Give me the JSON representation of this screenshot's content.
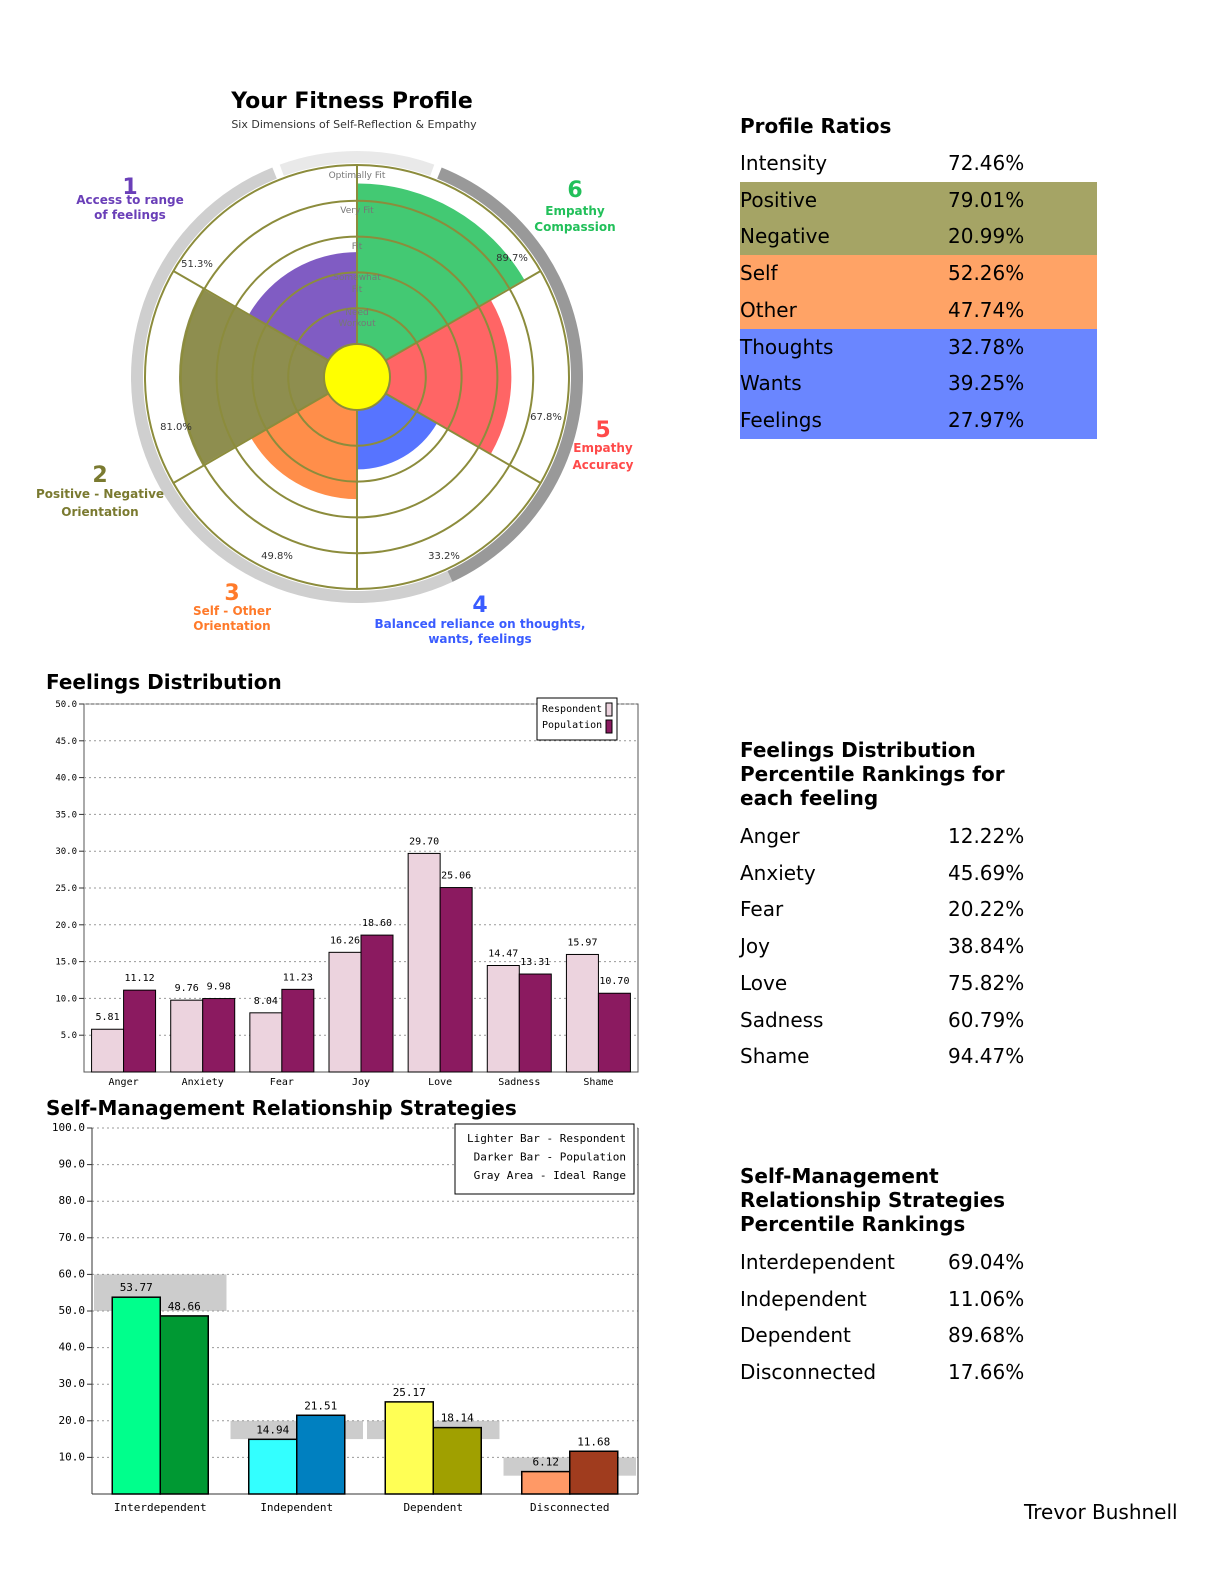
{
  "fitness_profile": {
    "title": "Your Fitness Profile",
    "subtitle": "Six Dimensions of Self-Reflection & Empathy",
    "ring_labels": [
      "Optimally Fit",
      "Very Fit",
      "Fit",
      "Somewhat Fit",
      "Need Workout"
    ],
    "dimensions": [
      {
        "number": "1",
        "label_lines": [
          "Access to range",
          "of feelings"
        ],
        "value": 51.3,
        "value_label": "51.3%",
        "color": "#6a3fb8"
      },
      {
        "number": "2",
        "label_lines": [
          "Positive - Negative",
          "Orientation"
        ],
        "value": 81.0,
        "value_label": "81.0%",
        "color": "#7a7a30"
      },
      {
        "number": "3",
        "label_lines": [
          "Self - Other",
          "Orientation"
        ],
        "value": 49.8,
        "value_label": "49.8%",
        "color": "#ff7a2a"
      },
      {
        "number": "4",
        "label_lines": [
          "Balanced reliance on thoughts,",
          "wants, feelings"
        ],
        "value": 33.2,
        "value_label": "33.2%",
        "color": "#3a5cff"
      },
      {
        "number": "5",
        "label_lines": [
          "Empathy",
          "Accuracy"
        ],
        "value": 67.8,
        "value_label": "67.8%",
        "color": "#ff4a4a"
      },
      {
        "number": "6",
        "label_lines": [
          "Empathy",
          "Compassion"
        ],
        "value": 89.7,
        "value_label": "89.7%",
        "color": "#22c05a"
      }
    ]
  },
  "profile_ratios": {
    "title": "Profile Ratios",
    "rows": [
      {
        "label": "Intensity",
        "value": "72.46%",
        "bg": "#ffffff"
      },
      {
        "label": "Positive",
        "value": "79.01%",
        "bg": "#a5a465"
      },
      {
        "label": "Negative",
        "value": "20.99%",
        "bg": "#a5a465"
      },
      {
        "label": "Self",
        "value": "52.26%",
        "bg": "#ffa366"
      },
      {
        "label": "Other",
        "value": "47.74%",
        "bg": "#ffa366"
      },
      {
        "label": "Thoughts",
        "value": "32.78%",
        "bg": "#6a86ff"
      },
      {
        "label": "Wants",
        "value": "39.25%",
        "bg": "#6a86ff"
      },
      {
        "label": "Feelings",
        "value": "27.97%",
        "bg": "#6a86ff"
      }
    ]
  },
  "feelings_distribution": {
    "title": "Feelings Distribution",
    "legend": [
      "Respondent",
      "Population"
    ]
  },
  "feelings_percentiles": {
    "title_lines": [
      "Feelings Distribution",
      "Percentile Rankings for",
      "each feeling"
    ],
    "rows": [
      {
        "label": "Anger",
        "value": "12.22%"
      },
      {
        "label": "Anxiety",
        "value": "45.69%"
      },
      {
        "label": "Fear",
        "value": "20.22%"
      },
      {
        "label": "Joy",
        "value": "38.84%"
      },
      {
        "label": "Love",
        "value": "75.82%"
      },
      {
        "label": "Sadness",
        "value": "60.79%"
      },
      {
        "label": "Shame",
        "value": "94.47%"
      }
    ]
  },
  "strategies": {
    "title": "Self-Management Relationship Strategies",
    "legend": [
      "Lighter Bar - Respondent",
      "Darker Bar - Population",
      "Gray Area - Ideal Range"
    ]
  },
  "strategies_percentiles": {
    "title_lines": [
      "Self-Management",
      "Relationship Strategies",
      "Percentile Rankings"
    ],
    "rows": [
      {
        "label": "Interdependent",
        "value": "69.04%"
      },
      {
        "label": "Independent",
        "value": "11.06%"
      },
      {
        "label": "Dependent",
        "value": "89.68%"
      },
      {
        "label": "Disconnected",
        "value": "17.66%"
      }
    ]
  },
  "footer": {
    "name": "Trevor Bushnell"
  },
  "chart_data": [
    {
      "type": "bar",
      "title": "Feelings Distribution",
      "categories": [
        "Anger",
        "Anxiety",
        "Fear",
        "Joy",
        "Love",
        "Sadness",
        "Shame"
      ],
      "series": [
        {
          "name": "Respondent",
          "values": [
            5.81,
            9.76,
            8.04,
            16.26,
            29.7,
            14.47,
            15.97
          ],
          "labels": [
            "5.81",
            "9.76",
            "8.04",
            "16.26",
            "29.70",
            "14.47",
            "15.97"
          ],
          "color": "#ecd3de"
        },
        {
          "name": "Population",
          "values": [
            11.12,
            9.98,
            11.23,
            18.6,
            25.06,
            13.31,
            10.7
          ],
          "labels": [
            "11.12",
            "9.98",
            "11.23",
            "18.60",
            "25.06",
            "13.31",
            "10.70"
          ],
          "color": "#8b1a60"
        }
      ],
      "ylim": [
        0,
        50
      ],
      "yticks": [
        "5.0",
        "10.0",
        "15.0",
        "20.0",
        "25.0",
        "30.0",
        "35.0",
        "40.0",
        "45.0",
        "50.0"
      ],
      "grid": true,
      "legend": "top-right"
    },
    {
      "type": "bar",
      "title": "Self-Management Relationship Strategies",
      "categories": [
        "Interdependent",
        "Independent",
        "Dependent",
        "Disconnected"
      ],
      "series": [
        {
          "name": "Respondent",
          "values": [
            53.77,
            14.94,
            25.17,
            6.12
          ],
          "labels": [
            "53.77",
            "14.94",
            "25.17",
            "6.12"
          ],
          "colors": [
            "#00ff8c",
            "#33ffff",
            "#ffff55",
            "#ff9966"
          ]
        },
        {
          "name": "Population",
          "values": [
            48.66,
            21.51,
            18.14,
            11.68
          ],
          "labels": [
            "48.66",
            "21.51",
            "18.14",
            "11.68"
          ],
          "colors": [
            "#009933",
            "#0080c0",
            "#a0a000",
            "#a03c1e"
          ]
        }
      ],
      "ideal_ranges": [
        [
          50,
          60
        ],
        [
          15,
          20
        ],
        [
          15,
          20
        ],
        [
          5,
          10
        ]
      ],
      "ideal_color": "#cccccc",
      "ylim": [
        0,
        100
      ],
      "yticks": [
        "10.0",
        "20.0",
        "30.0",
        "40.0",
        "50.0",
        "60.0",
        "70.0",
        "80.0",
        "90.0",
        "100.0"
      ],
      "grid": true,
      "legend": "top-right"
    }
  ]
}
